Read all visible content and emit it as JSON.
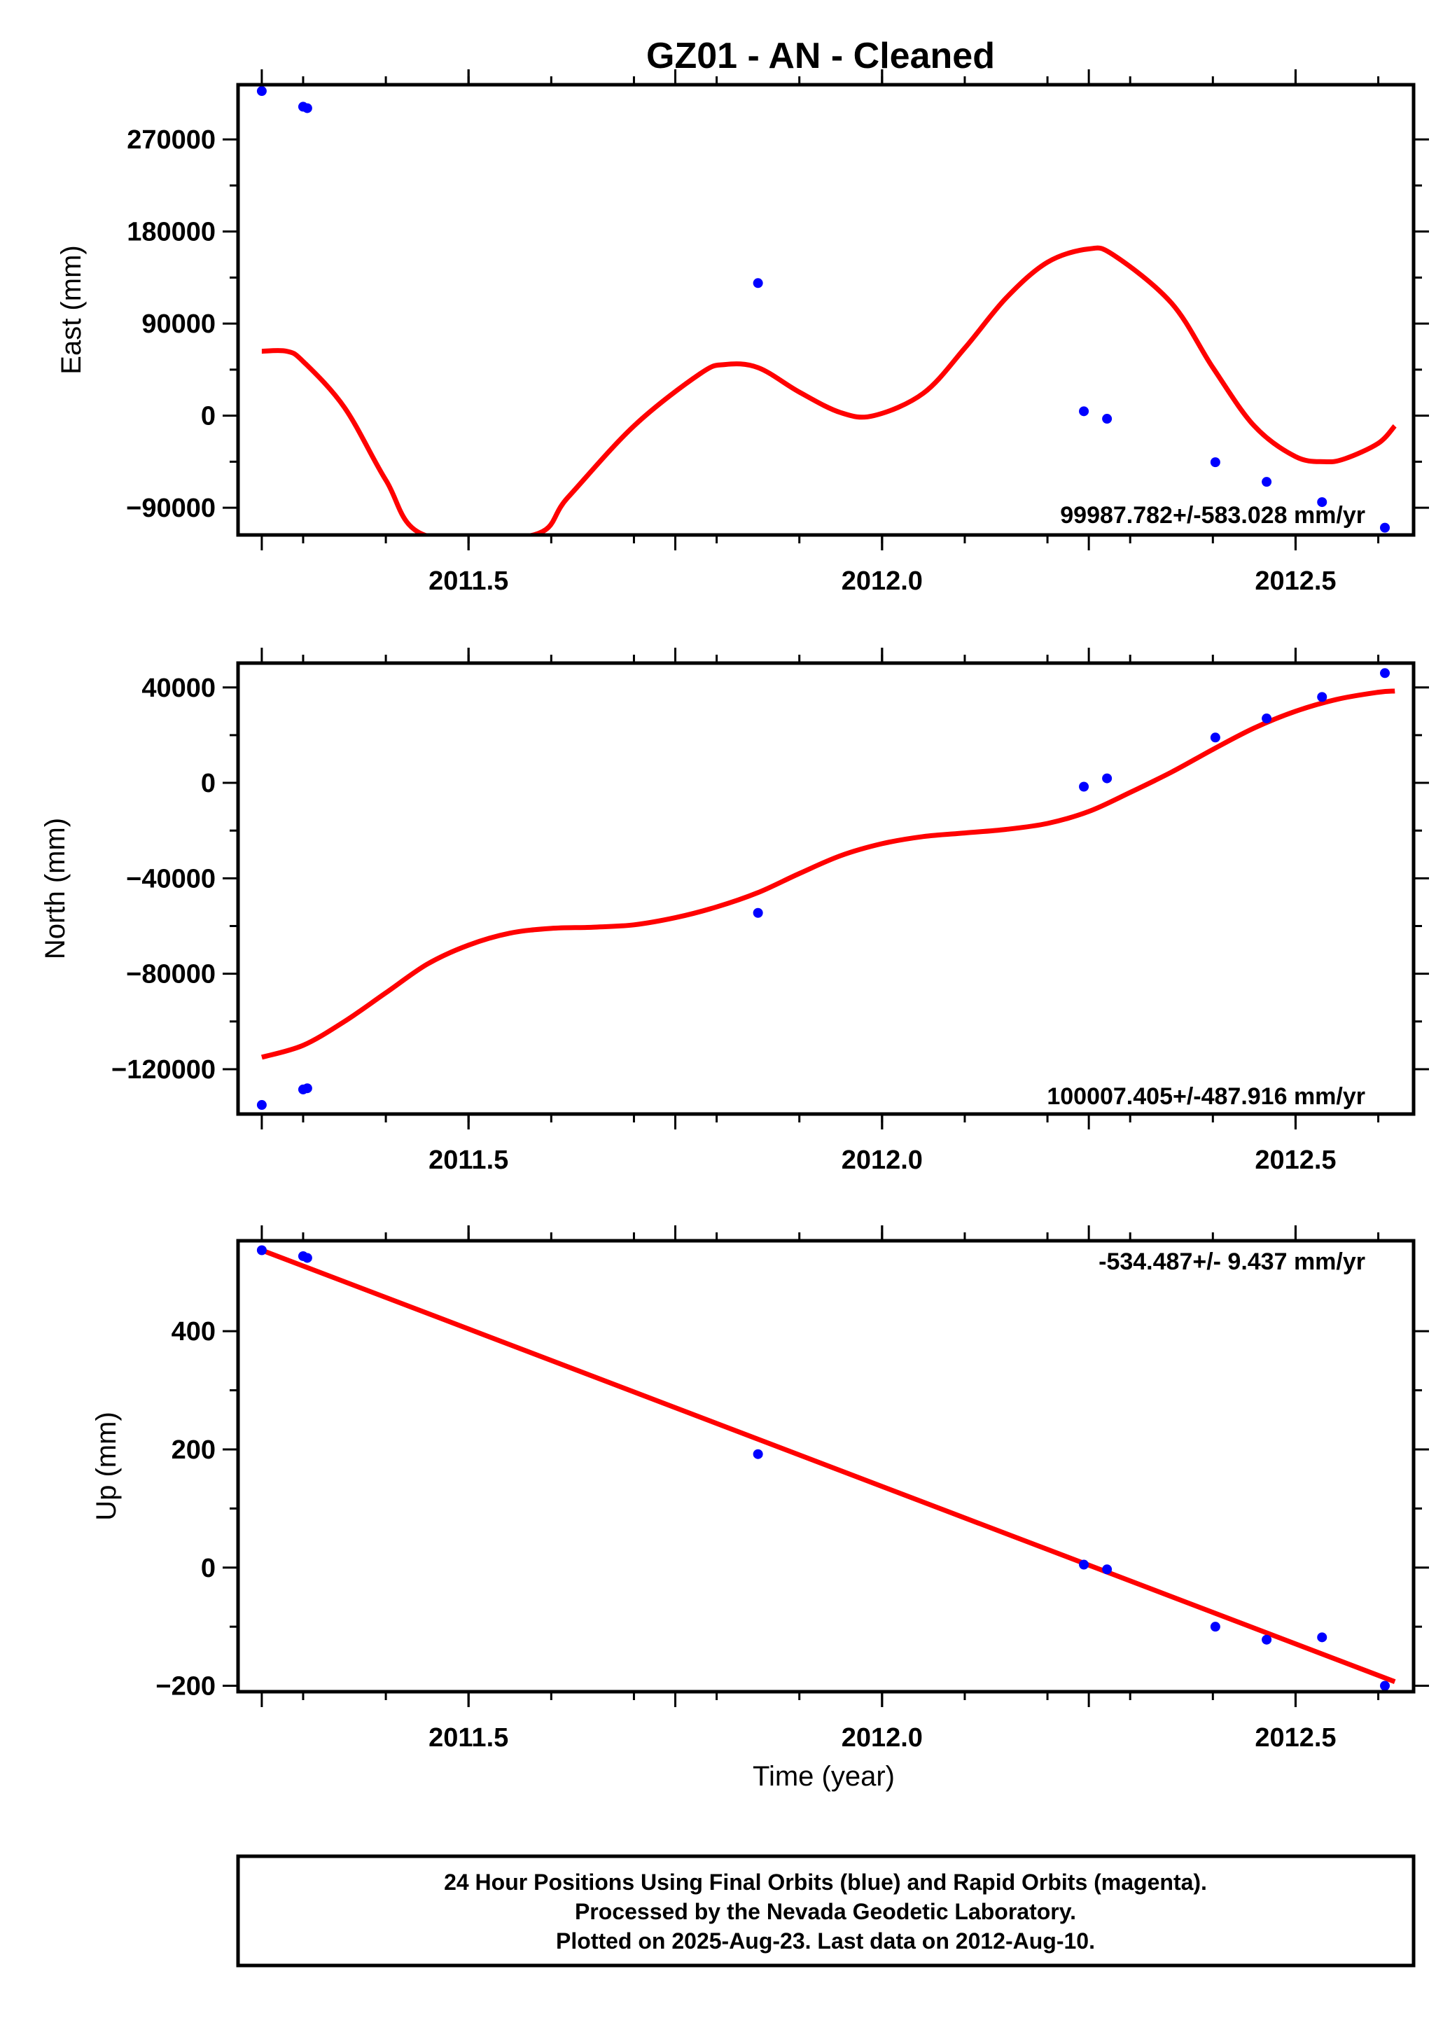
{
  "title": "GZ01  - AN - Cleaned",
  "colors": {
    "points": "#0000ff",
    "fit": "#ff0000",
    "frame": "#000000"
  },
  "footer": {
    "lines": [
      "24 Hour Positions Using Final Orbits (blue) and Rapid Orbits (magenta).",
      "Processed by the Nevada Geodetic Laboratory.",
      "Plotted on 2025-Aug-23. Last data on 2012-Aug-10."
    ]
  },
  "chart_data": [
    {
      "type": "scatter",
      "ylabel": "East (mm)",
      "xlabel": "",
      "xlim": [
        2011.2213,
        2012.6427
      ],
      "ylim": [
        -116600,
        323500
      ],
      "x_ticks": [
        2011.5,
        2012.0,
        2012.5
      ],
      "x_ticks_labeled": true,
      "y_ticks": [
        -90000,
        0,
        90000,
        180000,
        270000
      ],
      "grid": false,
      "rate_label": "99987.782+/-583.028 mm/yr",
      "rate_position": "bottom-right",
      "points": [
        [
          2011.25,
          317300
        ],
        [
          2011.3,
          302000
        ],
        [
          2011.305,
          300600
        ],
        [
          2011.85,
          129600
        ],
        [
          2012.244,
          4300
        ],
        [
          2012.272,
          -3000
        ],
        [
          2012.403,
          -45500
        ],
        [
          2012.465,
          -64700
        ],
        [
          2012.532,
          -84500
        ],
        [
          2012.608,
          -109500
        ]
      ],
      "fit_curve": [
        [
          2011.25,
          63000
        ],
        [
          2011.28,
          63000
        ],
        [
          2011.3,
          53000
        ],
        [
          2011.35,
          8000
        ],
        [
          2011.4,
          -63000
        ],
        [
          2011.4465,
          -116600
        ],
        [
          2011.5785,
          -116600
        ],
        [
          2011.62,
          -80000
        ],
        [
          2011.7,
          -10000
        ],
        [
          2011.78,
          41000
        ],
        [
          2011.81,
          50000
        ],
        [
          2011.85,
          47000
        ],
        [
          2011.9,
          23000
        ],
        [
          2011.95,
          3000
        ],
        [
          2011.99,
          0
        ],
        [
          2012.05,
          22000
        ],
        [
          2012.1,
          66000
        ],
        [
          2012.15,
          115000
        ],
        [
          2012.2,
          150000
        ],
        [
          2012.25,
          163000
        ],
        [
          2012.28,
          157000
        ],
        [
          2012.35,
          110000
        ],
        [
          2012.4,
          47000
        ],
        [
          2012.45,
          -10000
        ],
        [
          2012.5,
          -40000
        ],
        [
          2012.535,
          -45000
        ],
        [
          2012.56,
          -42000
        ],
        [
          2012.6,
          -27000
        ],
        [
          2012.62,
          -10000
        ]
      ]
    },
    {
      "type": "scatter",
      "ylabel": "North (mm)",
      "xlabel": "",
      "xlim": [
        2011.2213,
        2012.6427
      ],
      "ylim": [
        -138800,
        50200
      ],
      "x_ticks": [
        2011.5,
        2012.0,
        2012.5
      ],
      "x_ticks_labeled": true,
      "y_ticks": [
        -120000,
        -80000,
        -40000,
        0,
        40000
      ],
      "grid": false,
      "rate_label": "100007.405+/-487.916 mm/yr",
      "rate_position": "bottom-right",
      "points": [
        [
          2011.25,
          -135000
        ],
        [
          2011.3,
          -128500
        ],
        [
          2011.305,
          -128000
        ],
        [
          2011.85,
          -54500
        ],
        [
          2012.244,
          -1600
        ],
        [
          2012.272,
          1900
        ],
        [
          2012.403,
          19000
        ],
        [
          2012.465,
          27000
        ],
        [
          2012.532,
          36000
        ],
        [
          2012.608,
          46000
        ]
      ],
      "fit_curve": [
        [
          2011.25,
          -115000
        ],
        [
          2011.3,
          -110000
        ],
        [
          2011.35,
          -100000
        ],
        [
          2011.4,
          -88000
        ],
        [
          2011.45,
          -76000
        ],
        [
          2011.5,
          -68000
        ],
        [
          2011.55,
          -63000
        ],
        [
          2011.6,
          -61000
        ],
        [
          2011.65,
          -60500
        ],
        [
          2011.7,
          -59500
        ],
        [
          2011.75,
          -56500
        ],
        [
          2011.8,
          -52000
        ],
        [
          2011.85,
          -46000
        ],
        [
          2011.9,
          -38000
        ],
        [
          2011.95,
          -30500
        ],
        [
          2012.0,
          -25500
        ],
        [
          2012.05,
          -22500
        ],
        [
          2012.1,
          -21000
        ],
        [
          2012.15,
          -19500
        ],
        [
          2012.2,
          -17000
        ],
        [
          2012.25,
          -12000
        ],
        [
          2012.3,
          -4000
        ],
        [
          2012.35,
          4500
        ],
        [
          2012.4,
          14000
        ],
        [
          2012.45,
          23000
        ],
        [
          2012.5,
          30000
        ],
        [
          2012.55,
          35000
        ],
        [
          2012.6,
          38000
        ],
        [
          2012.62,
          38500
        ]
      ]
    },
    {
      "type": "scatter",
      "ylabel": "Up (mm)",
      "xlabel": "Time (year)",
      "xlim": [
        2011.2213,
        2012.6427
      ],
      "ylim": [
        -210,
        553
      ],
      "x_ticks": [
        2011.5,
        2012.0,
        2012.5
      ],
      "x_ticks_labeled": true,
      "y_ticks": [
        -200,
        0,
        200,
        400
      ],
      "grid": false,
      "rate_label": "-534.487+/- 9.437 mm/yr",
      "rate_position": "top-right",
      "points": [
        [
          2011.25,
          537
        ],
        [
          2011.3,
          527
        ],
        [
          2011.305,
          524
        ],
        [
          2011.85,
          192
        ],
        [
          2012.244,
          5
        ],
        [
          2012.272,
          -3
        ],
        [
          2012.403,
          -100
        ],
        [
          2012.465,
          -122
        ],
        [
          2012.532,
          -118
        ],
        [
          2012.608,
          -200
        ]
      ],
      "fit_curve": [
        [
          2011.25,
          537
        ],
        [
          2012.62,
          -193
        ]
      ]
    }
  ]
}
